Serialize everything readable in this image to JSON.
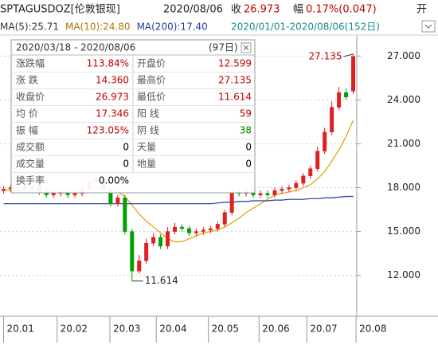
{
  "header": {
    "symbol": "SPTAGUSDOZ[伦敦银现]",
    "date": "2020/08/06",
    "close_label": "收",
    "close": "26.973",
    "change_label": "幅",
    "change": "0.17%(0.047)",
    "open_label": "开",
    "ma_legend": [
      {
        "text": "MA(5):25.71",
        "color": "#333333"
      },
      {
        "text": "MA(10):24.80",
        "color": "#b07800"
      },
      {
        "text": "MA(200):17.40",
        "color": "#2040a0"
      }
    ],
    "range": "2020/01/01-2020/08/06(152日)"
  },
  "info": {
    "header": "2020/03/18 - 2020/08/06",
    "days": "(97日)",
    "rows": [
      [
        "涨跌幅",
        "113.84%",
        "开盘价",
        "12.599"
      ],
      [
        "涨 跌",
        "14.360",
        "最高价",
        "27.135"
      ],
      [
        "收盘价",
        "26.973",
        "最低价",
        "11.614"
      ],
      [
        "均 价",
        "17.346",
        "阳 线",
        "59"
      ],
      [
        "振 幅",
        "123.05%",
        "阴 线",
        "38"
      ],
      [
        "成交额",
        "0",
        "天量",
        "0"
      ],
      [
        "成交量",
        "0",
        "地量",
        "0"
      ],
      [
        "换手率",
        "0.00%"
      ]
    ],
    "value_colors": [
      [
        "#c00000",
        "#c00000"
      ],
      [
        "#c00000",
        "#c00000"
      ],
      [
        "#c00000",
        "#c00000"
      ],
      [
        "#c00000",
        "#c00000"
      ],
      [
        "#c00000",
        "#008000"
      ],
      [
        "#000000",
        "#000000"
      ],
      [
        "#000000",
        "#000000"
      ],
      [
        "#000000"
      ]
    ]
  },
  "chart_data": {
    "type": "candlestick",
    "up_color": "#e02020",
    "down_color": "#00a000",
    "open": [
      17.8,
      17.9,
      18.0,
      18.1,
      17.9,
      18.1,
      17.7,
      17.5,
      17.6,
      17.7,
      17.5,
      17.6,
      17.9,
      18.4,
      18.6,
      17.9,
      16.9,
      17.3,
      15.0,
      12.3,
      13.0,
      14.2,
      14.6,
      14.0,
      15.0,
      15.3,
      15.2,
      14.9,
      15.0,
      15.1,
      15.2,
      15.5,
      16.3,
      17.7,
      17.6,
      17.8,
      17.5,
      17.6,
      17.5,
      17.8,
      17.9,
      18.0,
      18.3,
      18.8,
      19.3,
      20.5,
      21.8,
      23.5,
      24.5,
      24.6
    ],
    "high": [
      18.1,
      18.2,
      18.3,
      18.3,
      18.3,
      18.3,
      17.9,
      17.8,
      17.9,
      17.9,
      17.8,
      18.1,
      18.6,
      18.9,
      18.8,
      18.1,
      17.5,
      17.5,
      15.2,
      13.4,
      14.5,
      14.9,
      14.8,
      15.3,
      15.6,
      15.5,
      15.4,
      15.2,
      15.3,
      15.4,
      15.7,
      16.5,
      18.0,
      17.9,
      18.0,
      18.0,
      17.8,
      17.8,
      18.0,
      18.1,
      18.2,
      18.5,
      19.0,
      19.5,
      20.8,
      22.1,
      23.9,
      24.9,
      24.8,
      27.135
    ],
    "low": [
      17.6,
      17.7,
      17.8,
      17.7,
      17.7,
      17.5,
      17.3,
      17.3,
      17.4,
      17.3,
      17.3,
      17.4,
      17.7,
      18.2,
      17.7,
      16.7,
      16.7,
      14.8,
      11.614,
      12.1,
      12.8,
      14.0,
      13.8,
      13.8,
      14.8,
      15.0,
      14.7,
      14.7,
      14.8,
      14.9,
      15.0,
      15.3,
      16.1,
      17.4,
      17.4,
      17.3,
      17.3,
      17.3,
      17.3,
      17.6,
      17.7,
      17.8,
      18.1,
      18.6,
      19.1,
      20.3,
      21.6,
      23.3,
      24.0,
      24.4
    ],
    "close": [
      17.9,
      18.0,
      18.1,
      17.9,
      18.1,
      17.7,
      17.5,
      17.6,
      17.7,
      17.5,
      17.6,
      17.9,
      18.4,
      18.6,
      17.9,
      16.9,
      17.3,
      15.0,
      12.3,
      13.0,
      14.2,
      14.6,
      14.0,
      15.0,
      15.3,
      15.2,
      14.9,
      15.0,
      15.1,
      15.2,
      15.5,
      16.3,
      17.7,
      17.6,
      17.8,
      17.5,
      17.6,
      17.5,
      17.8,
      17.9,
      18.0,
      18.3,
      18.8,
      19.3,
      20.5,
      21.8,
      23.5,
      24.5,
      24.2,
      26.973
    ],
    "series": [
      {
        "color": "#e0a000",
        "values": [
          17.8,
          17.8,
          17.8,
          17.8,
          17.8,
          17.8,
          17.8,
          17.8,
          17.8,
          17.8,
          17.8,
          17.8,
          17.9,
          18.0,
          18.0,
          17.9,
          17.7,
          17.4,
          16.8,
          16.2,
          15.7,
          15.3,
          14.9,
          14.5,
          14.3,
          14.3,
          14.5,
          14.7,
          14.9,
          15.0,
          15.1,
          15.3,
          15.6,
          15.9,
          16.3,
          16.6,
          16.9,
          17.2,
          17.5,
          17.6,
          17.7,
          17.8,
          18.0,
          18.2,
          18.6,
          19.1,
          19.8,
          20.6,
          21.5,
          22.6
        ]
      },
      {
        "color": "#1f3a9a",
        "values": [
          16.9,
          16.9,
          16.9,
          16.9,
          16.9,
          16.9,
          16.9,
          16.9,
          16.9,
          16.9,
          16.9,
          16.9,
          16.9,
          16.9,
          16.9,
          16.9,
          16.9,
          16.9,
          16.9,
          16.9,
          16.9,
          16.9,
          16.9,
          16.9,
          16.9,
          16.9,
          16.9,
          16.9,
          16.9,
          16.9,
          16.95,
          17.0,
          17.0,
          17.05,
          17.05,
          17.1,
          17.1,
          17.1,
          17.15,
          17.15,
          17.2,
          17.2,
          17.2,
          17.25,
          17.25,
          17.3,
          17.3,
          17.35,
          17.4,
          17.4
        ]
      }
    ],
    "xlim": [
      -0.5,
      49.5
    ],
    "xticks": [
      {
        "value": 0,
        "label": "20.01"
      },
      {
        "value": 7.5,
        "label": "20.02"
      },
      {
        "value": 14.9,
        "label": "20.03"
      },
      {
        "value": 21.4,
        "label": "20.04"
      },
      {
        "value": 28.7,
        "label": "20.05"
      },
      {
        "value": 35.8,
        "label": "20.06"
      },
      {
        "value": 42.5,
        "label": "20.07"
      },
      {
        "value": 49.4,
        "label": "20.08"
      }
    ],
    "ylim": [
      9.2,
      28.0
    ],
    "yticks": [
      {
        "value": 12,
        "label": "12.000"
      },
      {
        "value": 15,
        "label": "15.000"
      },
      {
        "value": 18,
        "label": "18.000"
      },
      {
        "value": 21,
        "label": "21.000"
      },
      {
        "value": 24,
        "label": "24.000"
      },
      {
        "value": 27,
        "label": "27.000"
      }
    ],
    "grid": true,
    "annotations": [
      {
        "text": "11.614",
        "index": 18,
        "value": 11.614
      },
      {
        "text": "27.135",
        "index": 49,
        "value": 27.135
      }
    ]
  }
}
